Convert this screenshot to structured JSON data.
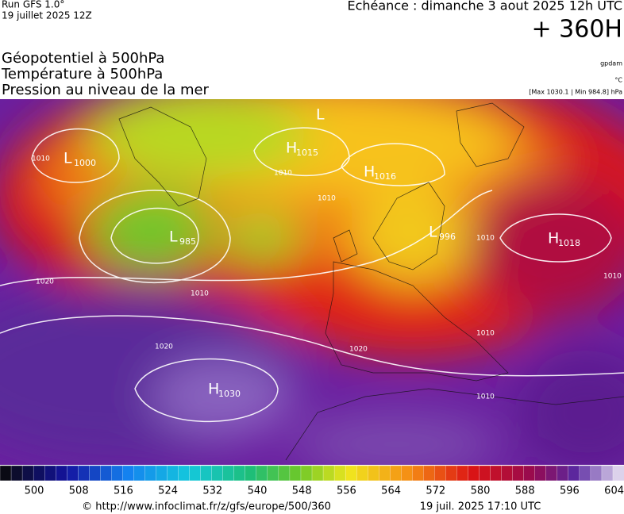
{
  "header": {
    "run": "Run GFS 1.0°",
    "run_date": "19 juillet 2025 12Z",
    "valid_time": "Echéance : dimanche 3 aout 2025 12h UTC",
    "lead_time": "+ 360H"
  },
  "titles": [
    "Géopotentiel à 500hPa",
    "Température à 500hPa",
    "Pression au niveau de la mer"
  ],
  "units": {
    "geopotential": "gpdam",
    "temperature": "°C",
    "pressure": "[Max 1030.1 | Min 984.8] hPa"
  },
  "centers": [
    {
      "letter": "L",
      "value": 1000
    },
    {
      "letter": "L",
      "value": null
    },
    {
      "letter": "H",
      "value": 1015
    },
    {
      "letter": "H",
      "value": 1016
    },
    {
      "letter": "L",
      "value": 985
    },
    {
      "letter": "L",
      "value": 996
    },
    {
      "letter": "H",
      "value": 1018
    },
    {
      "letter": "H",
      "value": 1030
    }
  ],
  "isobar_labels": [
    1010,
    1020,
    1010,
    1010,
    1020,
    1020,
    1010,
    1010,
    1010,
    1010,
    1010
  ],
  "colorbar": {
    "ticks": [
      500,
      508,
      516,
      524,
      532,
      540,
      548,
      556,
      564,
      572,
      580,
      588,
      596,
      604
    ]
  },
  "footer": {
    "url": "© http://www.infoclimat.fr/z/gfs/europe/500/360",
    "generated": "19 juil. 2025 17:10 UTC"
  }
}
